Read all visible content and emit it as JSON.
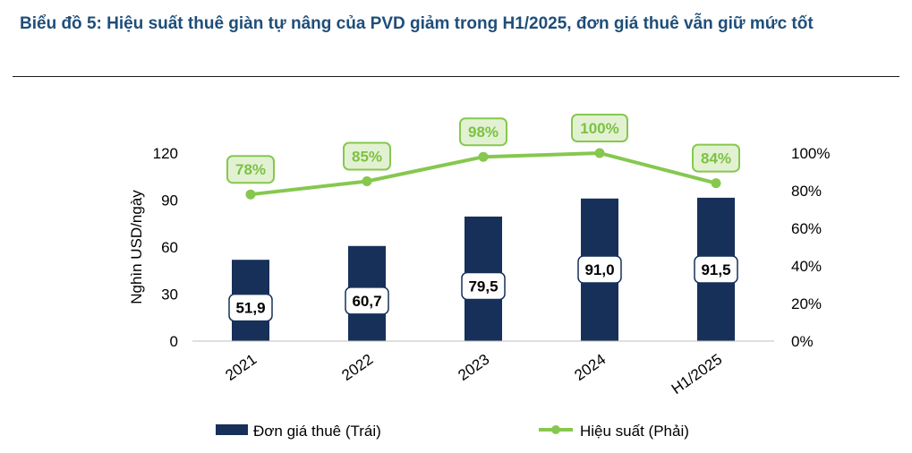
{
  "title": "Biểu đồ 5: Hiệu suất thuê giàn tự nâng của PVD giảm trong H1/2025, đơn giá thuê vẫn giữ mức tốt",
  "colors": {
    "bar": "#17305a",
    "line": "#86c84e",
    "label_border": "#17305a",
    "line_label_fill": "#e3f1d3",
    "title": "#1f4e79"
  },
  "chart_data": {
    "type": "bar+line",
    "categories": [
      "2021",
      "2022",
      "2023",
      "2024",
      "H1/2025"
    ],
    "series": [
      {
        "name": "Đơn giá thuê (Trái)",
        "type": "bar",
        "axis": "left",
        "values": [
          51.9,
          60.7,
          79.5,
          91.0,
          91.5
        ],
        "labels": [
          "51,9",
          "60,7",
          "79,5",
          "91,0",
          "91,5"
        ]
      },
      {
        "name": "Hiệu suất (Phải)",
        "type": "line",
        "axis": "right",
        "values": [
          78,
          85,
          98,
          100,
          84
        ],
        "labels": [
          "78%",
          "85%",
          "98%",
          "100%",
          "84%"
        ]
      }
    ],
    "ylabel": "Nghìn USD/ngày",
    "ylim": [
      0,
      120
    ],
    "y_ticks": [
      "0",
      "30",
      "60",
      "90",
      "120"
    ],
    "y2lim": [
      0,
      100
    ],
    "y2_ticks": [
      "0%",
      "20%",
      "40%",
      "60%",
      "80%",
      "100%"
    ],
    "legend_position": "bottom",
    "grid": false
  }
}
